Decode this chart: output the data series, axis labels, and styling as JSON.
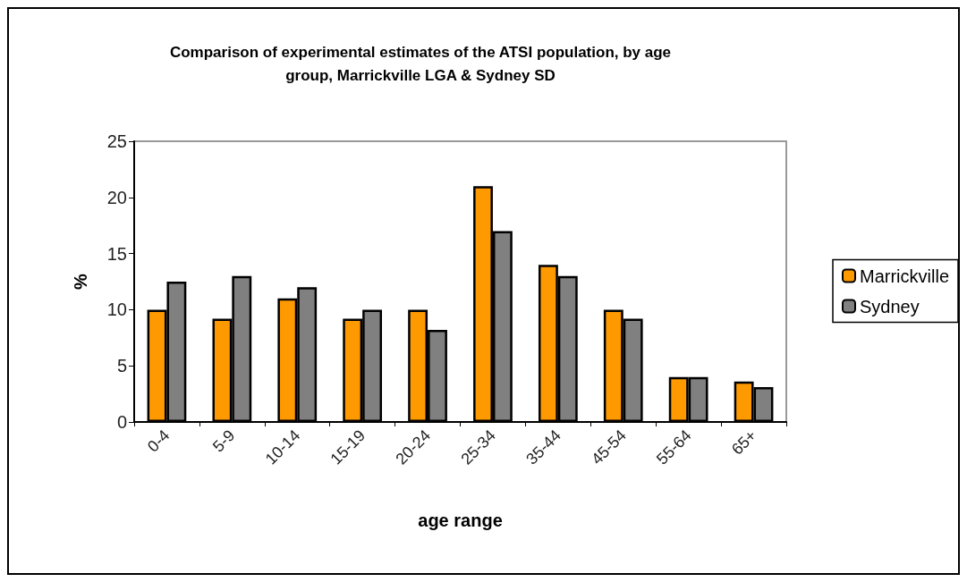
{
  "chart_data": {
    "type": "bar",
    "title": "Comparison of experimental estimates of the ATSI population, by age\ngroup, Marrickville LGA & Sydney SD",
    "xlabel": "age range",
    "ylabel": "%",
    "categories": [
      "0-4",
      "5-9",
      "10-14",
      "15-19",
      "20-24",
      "25-34",
      "35-44",
      "45-54",
      "55-64",
      "65+"
    ],
    "series": [
      {
        "name": "Marrickville",
        "color": "#ff9900",
        "values": [
          10,
          9.2,
          11,
          9.2,
          10,
          21,
          14,
          10,
          4,
          3.6
        ]
      },
      {
        "name": "Sydney",
        "color": "#808080",
        "values": [
          12.5,
          13,
          12,
          10,
          8.2,
          17,
          13,
          9.2,
          4,
          3.1
        ]
      }
    ],
    "ylim": [
      0,
      25
    ],
    "yticks": [
      0,
      5,
      10,
      15,
      20,
      25
    ],
    "grid": false,
    "legend": "right"
  }
}
